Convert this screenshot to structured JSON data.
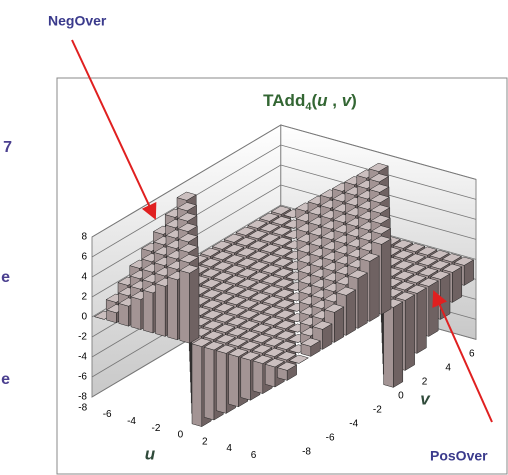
{
  "chart_data": {
    "type": "bar3d",
    "title_parts": [
      "TAdd",
      "4",
      "(",
      "u",
      " , ",
      "v",
      ")"
    ],
    "xlabel": "u",
    "ylabel": "v",
    "annotations": [
      "NegOver",
      "PosOver"
    ],
    "x": [
      -8,
      -7,
      -6,
      -5,
      -4,
      -3,
      -2,
      -1,
      0,
      1,
      2,
      3,
      4,
      5,
      6,
      7
    ],
    "y": [
      -8,
      -7,
      -6,
      -5,
      -4,
      -3,
      -2,
      -1,
      0,
      1,
      2,
      3,
      4,
      5,
      6,
      7
    ],
    "values": [
      [
        0,
        1,
        2,
        3,
        4,
        5,
        6,
        7,
        -8,
        -7,
        -6,
        -5,
        -4,
        -3,
        -2,
        -1
      ],
      [
        1,
        2,
        3,
        4,
        5,
        6,
        7,
        -8,
        -7,
        -6,
        -5,
        -4,
        -3,
        -2,
        -1,
        0
      ],
      [
        2,
        3,
        4,
        5,
        6,
        7,
        -8,
        -7,
        -6,
        -5,
        -4,
        -3,
        -2,
        -1,
        0,
        1
      ],
      [
        3,
        4,
        5,
        6,
        7,
        -8,
        -7,
        -6,
        -5,
        -4,
        -3,
        -2,
        -1,
        0,
        1,
        2
      ],
      [
        4,
        5,
        6,
        7,
        -8,
        -7,
        -6,
        -5,
        -4,
        -3,
        -2,
        -1,
        0,
        1,
        2,
        3
      ],
      [
        5,
        6,
        7,
        -8,
        -7,
        -6,
        -5,
        -4,
        -3,
        -2,
        -1,
        0,
        1,
        2,
        3,
        4
      ],
      [
        6,
        7,
        -8,
        -7,
        -6,
        -5,
        -4,
        -3,
        -2,
        -1,
        0,
        1,
        2,
        3,
        4,
        5
      ],
      [
        7,
        -8,
        -7,
        -6,
        -5,
        -4,
        -3,
        -2,
        -1,
        0,
        1,
        2,
        3,
        4,
        5,
        6
      ],
      [
        -8,
        -7,
        -6,
        -5,
        -4,
        -3,
        -2,
        -1,
        0,
        1,
        2,
        3,
        4,
        5,
        6,
        7
      ],
      [
        -7,
        -6,
        -5,
        -4,
        -3,
        -2,
        -1,
        0,
        1,
        2,
        3,
        4,
        5,
        6,
        7,
        -8
      ],
      [
        -6,
        -5,
        -4,
        -3,
        -2,
        -1,
        0,
        1,
        2,
        3,
        4,
        5,
        6,
        7,
        -8,
        -7
      ],
      [
        -5,
        -4,
        -3,
        -2,
        -1,
        0,
        1,
        2,
        3,
        4,
        5,
        6,
        7,
        -8,
        -7,
        -6
      ],
      [
        -4,
        -3,
        -2,
        -1,
        0,
        1,
        2,
        3,
        4,
        5,
        6,
        7,
        -8,
        -7,
        -6,
        -5
      ],
      [
        -3,
        -2,
        -1,
        0,
        1,
        2,
        3,
        4,
        5,
        6,
        7,
        -8,
        -7,
        -6,
        -5,
        -4
      ],
      [
        -2,
        -1,
        0,
        1,
        2,
        3,
        4,
        5,
        6,
        7,
        -8,
        -7,
        -6,
        -5,
        -4,
        -3
      ],
      [
        -1,
        0,
        1,
        2,
        3,
        4,
        5,
        6,
        7,
        -8,
        -7,
        -6,
        -5,
        -4,
        -3,
        -2
      ]
    ],
    "color": "#a39494",
    "xlim": [
      -8.5,
      7.5
    ],
    "ylim": [
      -8.5,
      7.5
    ],
    "zlim": [
      -8,
      8
    ],
    "xticks": [
      -8,
      -6,
      -4,
      -2,
      0,
      2,
      4,
      6
    ],
    "yticks": [
      -8,
      -6,
      -4,
      -2,
      0,
      2,
      4,
      6
    ],
    "zticks": [
      -8,
      -6,
      -4,
      -2,
      0,
      2,
      4,
      6,
      8
    ],
    "grid": true
  },
  "clipped_text": [
    "7",
    "e",
    "e"
  ]
}
